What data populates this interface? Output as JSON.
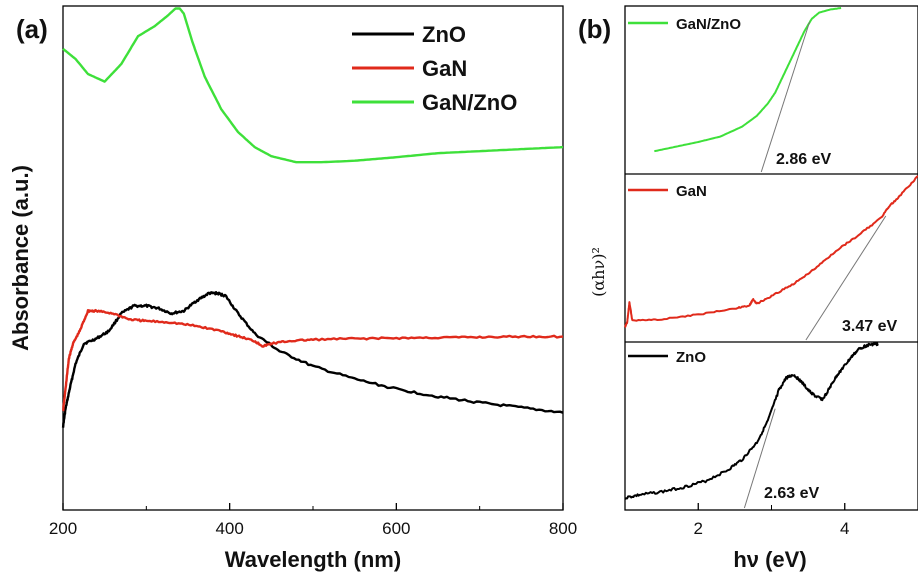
{
  "panels": {
    "a_label": "(a)",
    "b_label": "(b)"
  },
  "chart_data": [
    {
      "type": "line",
      "panel": "(a)",
      "xlabel": "Wavelength (nm)",
      "ylabel": "Absorbance (a.u.)",
      "xlim": [
        200,
        800
      ],
      "ylim": [
        0,
        1.0
      ],
      "xticks": [
        "200",
        "400",
        "600",
        "800"
      ],
      "legend_position": "top-right",
      "series": [
        {
          "name": "ZnO",
          "color": "#000000",
          "x": [
            200,
            203,
            208,
            215,
            225,
            240,
            255,
            270,
            285,
            300,
            315,
            330,
            345,
            360,
            375,
            385,
            395,
            410,
            430,
            460,
            500,
            550,
            600,
            650,
            700,
            750,
            800
          ],
          "y": [
            0.165,
            0.2,
            0.24,
            0.29,
            0.33,
            0.34,
            0.355,
            0.39,
            0.405,
            0.405,
            0.4,
            0.39,
            0.395,
            0.415,
            0.43,
            0.43,
            0.425,
            0.39,
            0.35,
            0.315,
            0.285,
            0.26,
            0.24,
            0.225,
            0.213,
            0.203,
            0.193
          ]
        },
        {
          "name": "GaN",
          "color": "#e02a1b",
          "x": [
            200,
            203,
            207,
            212,
            220,
            230,
            240,
            260,
            280,
            300,
            330,
            360,
            390,
            410,
            430,
            440,
            450,
            470,
            500,
            550,
            600,
            650,
            700,
            750,
            800
          ],
          "y": [
            0.195,
            0.24,
            0.3,
            0.33,
            0.355,
            0.395,
            0.395,
            0.39,
            0.378,
            0.375,
            0.372,
            0.365,
            0.355,
            0.345,
            0.335,
            0.325,
            0.33,
            0.335,
            0.338,
            0.34,
            0.341,
            0.342,
            0.343,
            0.344,
            0.344
          ]
        },
        {
          "name": "GaN/ZnO",
          "color": "#3ee03a",
          "x": [
            200,
            215,
            230,
            250,
            270,
            290,
            310,
            325,
            335,
            340,
            345,
            355,
            370,
            390,
            410,
            430,
            450,
            480,
            510,
            550,
            600,
            650,
            700,
            750,
            800
          ],
          "y": [
            0.915,
            0.895,
            0.865,
            0.85,
            0.885,
            0.94,
            0.96,
            0.98,
            0.995,
            0.995,
            0.985,
            0.93,
            0.86,
            0.795,
            0.75,
            0.72,
            0.702,
            0.69,
            0.69,
            0.693,
            0.7,
            0.708,
            0.712,
            0.716,
            0.72
          ]
        }
      ]
    },
    {
      "type": "line",
      "panel": "(b)",
      "xlabel": "hν (eV)",
      "ylabel": "(αhν)²",
      "xlim": [
        1.0,
        5.0
      ],
      "xticks": [
        "2",
        "4"
      ],
      "subplots": [
        {
          "name": "GaN/ZnO",
          "color": "#3ee03a",
          "annotation": "2.86 eV",
          "band_gap": 2.86,
          "x": [
            1.4,
            1.7,
            2.0,
            2.3,
            2.6,
            2.8,
            2.95,
            3.05,
            3.15,
            3.25,
            3.35,
            3.45,
            3.55,
            3.65,
            3.8,
            3.95
          ],
          "y": [
            0.07,
            0.1,
            0.13,
            0.165,
            0.23,
            0.3,
            0.38,
            0.45,
            0.55,
            0.65,
            0.75,
            0.85,
            0.93,
            0.97,
            0.99,
            1.0
          ],
          "ylim": [
            0,
            1.0
          ],
          "tangent": {
            "x": [
              2.86,
              3.52
            ],
            "y": [
              0.0,
              0.91
            ]
          }
        },
        {
          "name": "GaN",
          "color": "#e02a1b",
          "annotation": "3.47 eV",
          "band_gap": 3.47,
          "x": [
            1.0,
            1.03,
            1.06,
            1.1,
            1.5,
            2.0,
            2.5,
            2.7,
            2.75,
            2.8,
            3.0,
            3.3,
            3.6,
            3.9,
            4.2,
            4.5,
            4.6,
            4.75,
            5.0
          ],
          "y": [
            0.02,
            0.05,
            0.18,
            0.06,
            0.07,
            0.1,
            0.14,
            0.16,
            0.2,
            0.17,
            0.22,
            0.3,
            0.4,
            0.52,
            0.62,
            0.73,
            0.8,
            0.87,
            1.0
          ],
          "ylim": [
            0,
            1.0
          ],
          "tangent": {
            "x": [
              3.47,
              4.56
            ],
            "y": [
              0.0,
              0.74
            ]
          }
        },
        {
          "name": "ZnO",
          "color": "#000000",
          "annotation": "2.63 eV",
          "band_gap": 2.63,
          "x": [
            1.0,
            1.2,
            1.5,
            1.8,
            2.1,
            2.4,
            2.6,
            2.8,
            2.95,
            3.1,
            3.2,
            3.3,
            3.4,
            3.5,
            3.6,
            3.7,
            3.8,
            3.9,
            4.0,
            4.1,
            4.2,
            4.3,
            4.4,
            4.45
          ],
          "y": [
            0.0,
            0.02,
            0.04,
            0.07,
            0.11,
            0.18,
            0.25,
            0.36,
            0.5,
            0.7,
            0.78,
            0.8,
            0.76,
            0.7,
            0.66,
            0.64,
            0.72,
            0.8,
            0.86,
            0.92,
            0.97,
            0.99,
            1.0,
            1.0
          ],
          "ylim": [
            0,
            1.0
          ],
          "tangent": {
            "x": [
              2.63,
              3.05
            ],
            "y": [
              0.0,
              0.58
            ]
          }
        }
      ]
    }
  ]
}
